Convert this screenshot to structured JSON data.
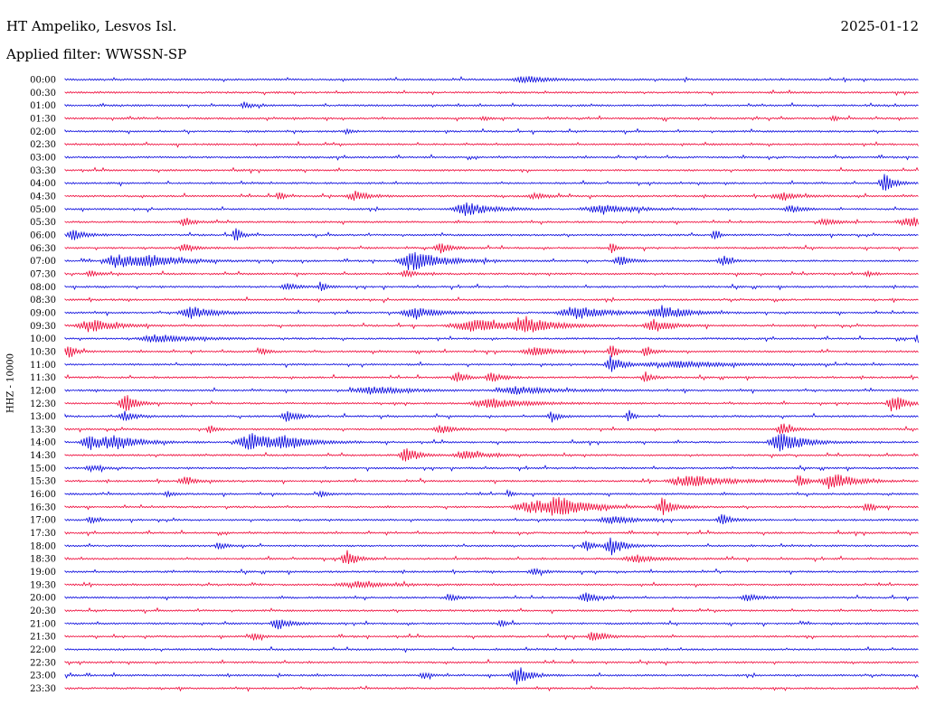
{
  "header": {
    "station": "HT Ampeliko, Lesvos Isl.",
    "date": "2025-01-12",
    "filter": "Applied filter: WWSSN-SP"
  },
  "colors": {
    "even_trace": "#0000dd",
    "odd_trace": "#ee0033",
    "text": "#000000"
  },
  "chart_data": {
    "type": "line",
    "title": "HT Ampeliko, Lesvos Isl.",
    "ylabel": "HHZ - 10000",
    "grid": false,
    "legend": "none",
    "rows": [
      {
        "label": "00:00",
        "events": [
          [
            0.54,
            0.4,
            0.02
          ]
        ]
      },
      {
        "label": "00:30",
        "events": []
      },
      {
        "label": "01:00",
        "events": [
          [
            0.21,
            0.4,
            0.006
          ]
        ]
      },
      {
        "label": "01:30",
        "events": [
          [
            0.49,
            0.25,
            0.005
          ],
          [
            0.9,
            0.25,
            0.005
          ]
        ]
      },
      {
        "label": "02:00",
        "events": [
          [
            0.33,
            0.3,
            0.004
          ]
        ]
      },
      {
        "label": "02:30",
        "events": []
      },
      {
        "label": "03:00",
        "events": []
      },
      {
        "label": "03:30",
        "events": []
      },
      {
        "label": "04:00",
        "events": [
          [
            0.96,
            1.0,
            0.008
          ]
        ]
      },
      {
        "label": "04:30",
        "events": [
          [
            0.25,
            0.6,
            0.004
          ],
          [
            0.34,
            0.5,
            0.012
          ],
          [
            0.55,
            0.3,
            0.01
          ],
          [
            0.84,
            0.35,
            0.015
          ]
        ]
      },
      {
        "label": "05:00",
        "events": [
          [
            0.47,
            0.7,
            0.02
          ],
          [
            0.63,
            0.4,
            0.03
          ],
          [
            0.85,
            0.4,
            0.01
          ]
        ]
      },
      {
        "label": "05:30",
        "events": [
          [
            0.14,
            0.5,
            0.008
          ],
          [
            0.89,
            0.4,
            0.01
          ],
          [
            0.99,
            0.5,
            0.02
          ]
        ]
      },
      {
        "label": "06:00",
        "events": [
          [
            0.01,
            0.6,
            0.01
          ],
          [
            0.2,
            0.7,
            0.006
          ],
          [
            0.76,
            0.7,
            0.004
          ]
        ]
      },
      {
        "label": "06:30",
        "events": [
          [
            0.14,
            0.5,
            0.008
          ],
          [
            0.44,
            0.5,
            0.01
          ],
          [
            0.64,
            0.6,
            0.004
          ]
        ]
      },
      {
        "label": "07:00",
        "events": [
          [
            0.06,
            0.7,
            0.02
          ],
          [
            0.1,
            0.5,
            0.03
          ],
          [
            0.41,
            1.0,
            0.025
          ],
          [
            0.65,
            0.5,
            0.01
          ],
          [
            0.77,
            0.6,
            0.008
          ]
        ]
      },
      {
        "label": "07:30",
        "events": [
          [
            0.03,
            0.4,
            0.006
          ],
          [
            0.4,
            0.4,
            0.008
          ],
          [
            0.94,
            0.3,
            0.006
          ]
        ]
      },
      {
        "label": "08:00",
        "events": [
          [
            0.26,
            0.5,
            0.008
          ],
          [
            0.3,
            0.4,
            0.006
          ]
        ]
      },
      {
        "label": "08:30",
        "events": []
      },
      {
        "label": "09:00",
        "events": [
          [
            0.15,
            0.6,
            0.02
          ],
          [
            0.41,
            0.6,
            0.02
          ],
          [
            0.6,
            0.6,
            0.03
          ],
          [
            0.7,
            0.7,
            0.02
          ]
        ]
      },
      {
        "label": "09:30",
        "events": [
          [
            0.03,
            0.7,
            0.02
          ],
          [
            0.48,
            0.6,
            0.04
          ],
          [
            0.54,
            0.8,
            0.02
          ],
          [
            0.69,
            0.7,
            0.015
          ]
        ]
      },
      {
        "label": "10:00",
        "events": [
          [
            0.11,
            0.4,
            0.03
          ],
          [
            1.0,
            0.8,
            0.006
          ]
        ]
      },
      {
        "label": "10:30",
        "events": [
          [
            0.003,
            0.9,
            0.006
          ],
          [
            0.23,
            0.4,
            0.006
          ],
          [
            0.55,
            0.4,
            0.02
          ],
          [
            0.64,
            0.7,
            0.006
          ],
          [
            0.68,
            0.7,
            0.006
          ]
        ]
      },
      {
        "label": "11:00",
        "events": [
          [
            0.64,
            1.0,
            0.01
          ],
          [
            0.72,
            0.3,
            0.05
          ]
        ]
      },
      {
        "label": "11:30",
        "events": [
          [
            0.46,
            0.6,
            0.008
          ],
          [
            0.5,
            0.5,
            0.01
          ],
          [
            0.68,
            0.6,
            0.006
          ]
        ]
      },
      {
        "label": "12:00",
        "events": [
          [
            0.36,
            0.4,
            0.03
          ],
          [
            0.53,
            0.4,
            0.03
          ]
        ]
      },
      {
        "label": "12:30",
        "events": [
          [
            0.07,
            1.0,
            0.01
          ],
          [
            0.5,
            0.5,
            0.03
          ],
          [
            0.97,
            1.0,
            0.01
          ]
        ]
      },
      {
        "label": "13:00",
        "events": [
          [
            0.07,
            0.5,
            0.01
          ],
          [
            0.26,
            0.6,
            0.01
          ],
          [
            0.57,
            0.6,
            0.006
          ],
          [
            0.66,
            0.7,
            0.004
          ]
        ]
      },
      {
        "label": "13:30",
        "events": [
          [
            0.17,
            0.4,
            0.006
          ],
          [
            0.44,
            0.5,
            0.01
          ],
          [
            0.84,
            0.7,
            0.008
          ]
        ]
      },
      {
        "label": "14:00",
        "events": [
          [
            0.03,
            0.8,
            0.015
          ],
          [
            0.06,
            0.7,
            0.02
          ],
          [
            0.22,
            0.9,
            0.025
          ],
          [
            0.26,
            0.5,
            0.02
          ],
          [
            0.84,
            1.0,
            0.02
          ]
        ]
      },
      {
        "label": "14:30",
        "events": [
          [
            0.4,
            0.9,
            0.01
          ],
          [
            0.47,
            0.4,
            0.02
          ]
        ]
      },
      {
        "label": "15:00",
        "events": [
          [
            0.03,
            0.4,
            0.008
          ]
        ]
      },
      {
        "label": "15:30",
        "events": [
          [
            0.14,
            0.4,
            0.01
          ],
          [
            0.73,
            0.7,
            0.03
          ],
          [
            0.86,
            0.8,
            0.006
          ],
          [
            0.9,
            0.8,
            0.02
          ]
        ]
      },
      {
        "label": "16:00",
        "events": [
          [
            0.12,
            0.3,
            0.006
          ],
          [
            0.3,
            0.3,
            0.006
          ],
          [
            0.52,
            0.3,
            0.004
          ]
        ]
      },
      {
        "label": "16:30",
        "events": [
          [
            0.55,
            0.7,
            0.03
          ],
          [
            0.58,
            0.9,
            0.02
          ],
          [
            0.7,
            0.9,
            0.01
          ],
          [
            0.94,
            0.5,
            0.006
          ]
        ]
      },
      {
        "label": "17:00",
        "events": [
          [
            0.03,
            0.5,
            0.006
          ],
          [
            0.64,
            0.4,
            0.02
          ],
          [
            0.77,
            0.6,
            0.008
          ]
        ]
      },
      {
        "label": "17:30",
        "events": []
      },
      {
        "label": "18:00",
        "events": [
          [
            0.18,
            0.4,
            0.006
          ],
          [
            0.61,
            0.6,
            0.006
          ],
          [
            0.64,
            1.0,
            0.01
          ]
        ]
      },
      {
        "label": "18:30",
        "events": [
          [
            0.33,
            1.0,
            0.008
          ],
          [
            0.67,
            0.4,
            0.02
          ]
        ]
      },
      {
        "label": "19:00",
        "events": [
          [
            0.55,
            0.3,
            0.01
          ]
        ]
      },
      {
        "label": "19:30",
        "events": [
          [
            0.34,
            0.3,
            0.03
          ]
        ]
      },
      {
        "label": "20:00",
        "events": [
          [
            0.45,
            0.4,
            0.008
          ],
          [
            0.61,
            0.5,
            0.01
          ],
          [
            0.8,
            0.4,
            0.01
          ]
        ]
      },
      {
        "label": "20:30",
        "events": []
      },
      {
        "label": "21:00",
        "events": [
          [
            0.25,
            0.6,
            0.01
          ],
          [
            0.51,
            0.5,
            0.004
          ]
        ]
      },
      {
        "label": "21:30",
        "events": [
          [
            0.22,
            0.5,
            0.006
          ],
          [
            0.62,
            0.6,
            0.01
          ]
        ]
      },
      {
        "label": "22:00",
        "events": []
      },
      {
        "label": "22:30",
        "events": []
      },
      {
        "label": "23:00",
        "events": [
          [
            0.42,
            0.4,
            0.006
          ],
          [
            0.53,
            1.0,
            0.01
          ]
        ]
      },
      {
        "label": "23:30",
        "events": []
      }
    ]
  }
}
